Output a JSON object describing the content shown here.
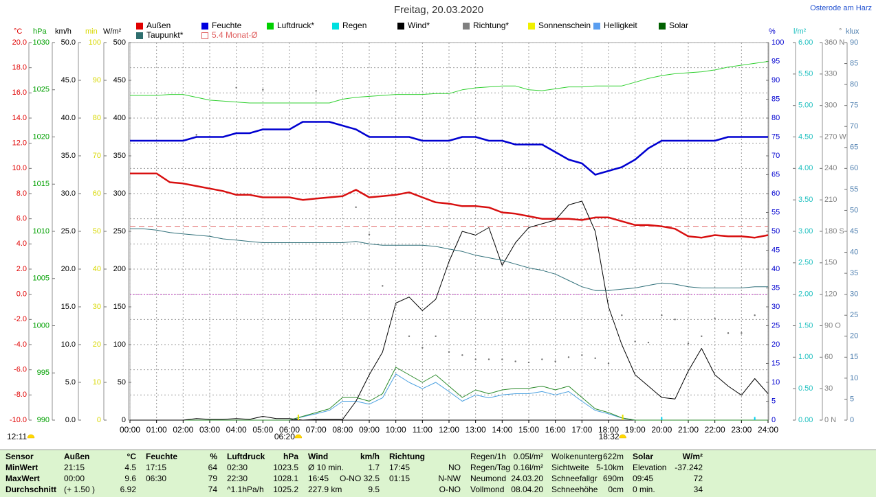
{
  "chart_data": {
    "type": "line",
    "title": "Freitag, 20.03.2020",
    "location": "Osterode am Harz",
    "xlim": [
      0,
      24
    ],
    "x": [
      0,
      0.5,
      1,
      1.5,
      2,
      2.5,
      3,
      3.5,
      4,
      4.5,
      5,
      5.5,
      6,
      6.5,
      7,
      7.5,
      8,
      8.5,
      9,
      9.5,
      10,
      10.5,
      11,
      11.5,
      12,
      12.5,
      13,
      13.5,
      14,
      14.5,
      15,
      15.5,
      16,
      16.5,
      17,
      17.5,
      18,
      18.5,
      19,
      19.5,
      20,
      20.5,
      21,
      21.5,
      22,
      22.5,
      23,
      23.5,
      24
    ],
    "xticks": [
      {
        "value": 0,
        "label": "00:00"
      },
      {
        "value": 1,
        "label": "01:00"
      },
      {
        "value": 2,
        "label": "02:00"
      },
      {
        "value": 3,
        "label": "03:00"
      },
      {
        "value": 4,
        "label": "04:00"
      },
      {
        "value": 5,
        "label": "05:00"
      },
      {
        "value": 6,
        "label": "06:00"
      },
      {
        "value": 7,
        "label": "07:00"
      },
      {
        "value": 8,
        "label": "08:00"
      },
      {
        "value": 9,
        "label": "09:00"
      },
      {
        "value": 10,
        "label": "10:00"
      },
      {
        "value": 11,
        "label": "11:00"
      },
      {
        "value": 12,
        "label": "12:00"
      },
      {
        "value": 13,
        "label": "13:00"
      },
      {
        "value": 14,
        "label": "14:00"
      },
      {
        "value": 15,
        "label": "15:00"
      },
      {
        "value": 16,
        "label": "16:00"
      },
      {
        "value": 17,
        "label": "17:00"
      },
      {
        "value": 18,
        "label": "18:00"
      },
      {
        "value": 19,
        "label": "19:00"
      },
      {
        "value": 20,
        "label": "20:00"
      },
      {
        "value": 21,
        "label": "21:00"
      },
      {
        "value": 22,
        "label": "22:00"
      },
      {
        "value": 23,
        "label": "23:00"
      },
      {
        "value": 24,
        "label": "24:00"
      }
    ],
    "grid": true,
    "axes": [
      {
        "unit": "°C",
        "side": "left",
        "color": "#e00000",
        "grid": true,
        "lim": [
          -10,
          20
        ],
        "ticks": [
          {
            "value": -10,
            "label": "-10.0"
          },
          {
            "value": -8,
            "label": "-8.0"
          },
          {
            "value": -6,
            "label": "-6.0"
          },
          {
            "value": -4,
            "label": "-4.0"
          },
          {
            "value": -2,
            "label": "-2.0"
          },
          {
            "value": 0,
            "label": "0.0"
          },
          {
            "value": 2,
            "label": "2.0"
          },
          {
            "value": 4,
            "label": "4.0"
          },
          {
            "value": 6,
            "label": "6.0"
          },
          {
            "value": 8,
            "label": "8.0"
          },
          {
            "value": 10,
            "label": "10.0"
          },
          {
            "value": 12,
            "label": "12.0"
          },
          {
            "value": 14,
            "label": "14.0"
          },
          {
            "value": 16,
            "label": "16.0"
          },
          {
            "value": 18,
            "label": "18.0"
          },
          {
            "value": 20,
            "label": "20.0"
          }
        ]
      },
      {
        "unit": "hPa",
        "side": "left",
        "color": "#00a000",
        "lim": [
          990,
          1030
        ],
        "ticks": [
          990,
          995,
          1000,
          1005,
          1010,
          1015,
          1020,
          1025,
          1030
        ]
      },
      {
        "unit": "km/h",
        "side": "left",
        "color": "#000000",
        "lim": [
          0,
          50
        ],
        "ticks": [
          {
            "value": 0,
            "label": "0.0"
          },
          {
            "value": 5,
            "label": "5.0"
          },
          {
            "value": 10,
            "label": "10.0"
          },
          {
            "value": 15,
            "label": "15.0"
          },
          {
            "value": 20,
            "label": "20.0"
          },
          {
            "value": 25,
            "label": "25.0"
          },
          {
            "value": 30,
            "label": "30.0"
          },
          {
            "value": 35,
            "label": "35.0"
          },
          {
            "value": 40,
            "label": "40.0"
          },
          {
            "value": 45,
            "label": "45.0"
          },
          {
            "value": 50,
            "label": "50.0"
          }
        ]
      },
      {
        "unit": "min",
        "side": "left",
        "color": "#d8d800",
        "lim": [
          0,
          100
        ],
        "ticks": [
          0,
          10,
          20,
          30,
          40,
          50,
          60,
          70,
          80,
          90,
          100
        ]
      },
      {
        "unit": "W/m²",
        "side": "left",
        "color": "#000000",
        "lim": [
          0,
          500
        ],
        "ticks": [
          0,
          50,
          100,
          150,
          200,
          250,
          300,
          350,
          400,
          450,
          500
        ]
      },
      {
        "unit": "%",
        "side": "right",
        "color": "#0000d0",
        "lim": [
          0,
          100
        ],
        "ticks": [
          0,
          5,
          10,
          15,
          20,
          25,
          30,
          35,
          40,
          45,
          50,
          55,
          60,
          65,
          70,
          75,
          80,
          85,
          90,
          95,
          100
        ]
      },
      {
        "unit": "l/m²",
        "side": "right",
        "color": "#20c0c0",
        "lim": [
          0,
          6
        ],
        "ticks": [
          {
            "value": 0,
            "label": "0.00"
          },
          {
            "value": 0.5,
            "label": "0.50"
          },
          {
            "value": 1,
            "label": "1.00"
          },
          {
            "value": 1.5,
            "label": "1.50"
          },
          {
            "value": 2,
            "label": "2.00"
          },
          {
            "value": 2.5,
            "label": "2.50"
          },
          {
            "value": 3,
            "label": "3.00"
          },
          {
            "value": 3.5,
            "label": "3.50"
          },
          {
            "value": 4,
            "label": "4.00"
          },
          {
            "value": 4.5,
            "label": "4.50"
          },
          {
            "value": 5,
            "label": "5.00"
          },
          {
            "value": 5.5,
            "label": "5.50"
          },
          {
            "value": 6,
            "label": "6.00"
          }
        ]
      },
      {
        "unit": "°",
        "side": "right",
        "color": "#808080",
        "lim": [
          0,
          360
        ],
        "ticks": [
          {
            "value": 0,
            "label": "0 N"
          },
          30,
          60,
          {
            "value": 90,
            "label": "90 O"
          },
          120,
          150,
          {
            "value": 180,
            "label": "180 S"
          },
          210,
          240,
          {
            "value": 270,
            "label": "270 W"
          },
          300,
          330,
          {
            "value": 360,
            "label": "360 N"
          }
        ]
      },
      {
        "unit": "klux",
        "side": "right",
        "color": "#5080b0",
        "lim": [
          0,
          90
        ],
        "ticks": [
          0,
          5,
          10,
          15,
          20,
          25,
          30,
          35,
          40,
          45,
          50,
          55,
          60,
          65,
          70,
          75,
          80,
          85,
          90
        ]
      }
    ],
    "series": [
      {
        "name": "Außen",
        "color": "#e00000",
        "line_color": "#d81010",
        "style": "line",
        "width": 2.5,
        "axis": "°C",
        "values": [
          9.6,
          9.6,
          9.6,
          8.9,
          8.8,
          8.6,
          8.4,
          8.2,
          7.9,
          7.9,
          7.7,
          7.7,
          7.7,
          7.5,
          7.6,
          7.7,
          7.8,
          8.3,
          7.7,
          7.8,
          7.9,
          8.1,
          7.7,
          7.3,
          7.2,
          7.0,
          7.0,
          6.9,
          6.5,
          6.4,
          6.2,
          6.0,
          6.0,
          6.0,
          5.9,
          6.1,
          6.1,
          5.8,
          5.5,
          5.5,
          5.4,
          5.2,
          4.6,
          4.5,
          4.7,
          4.6,
          4.6,
          4.5,
          4.7
        ]
      },
      {
        "name": "Feuchte",
        "color": "#0000e0",
        "line_color": "#0000d0",
        "style": "line",
        "width": 2.5,
        "axis": "%",
        "values": [
          74,
          74,
          74,
          74,
          74,
          75,
          75,
          75,
          76,
          76,
          77,
          77,
          77,
          79,
          79,
          79,
          78,
          77,
          75,
          75,
          75,
          75,
          74,
          74,
          74,
          75,
          75,
          74,
          74,
          73,
          73,
          73,
          71,
          69,
          68,
          65,
          66,
          67,
          69,
          72,
          74,
          74,
          74,
          74,
          74,
          75,
          75,
          75,
          75
        ]
      },
      {
        "name": "Luftdruck*",
        "color": "#00d000",
        "line_color": "#30d030",
        "style": "line",
        "width": 1,
        "axis": "hPa",
        "values": [
          1024.4,
          1024.4,
          1024.4,
          1024.5,
          1024.5,
          1024.2,
          1023.9,
          1023.8,
          1023.7,
          1023.6,
          1023.6,
          1023.6,
          1023.6,
          1023.6,
          1023.6,
          1023.6,
          1024.0,
          1024.2,
          1024.3,
          1024.4,
          1024.5,
          1024.5,
          1024.5,
          1024.6,
          1024.6,
          1025.0,
          1025.2,
          1025.3,
          1025.4,
          1025.4,
          1025.0,
          1024.9,
          1025.1,
          1025.3,
          1025.3,
          1025.4,
          1025.4,
          1025.4,
          1025.8,
          1026.2,
          1026.5,
          1026.7,
          1026.8,
          1026.9,
          1027.1,
          1027.4,
          1027.6,
          1027.8,
          1028.0
        ]
      },
      {
        "name": "Regen",
        "color": "#00e0e0",
        "line_color": "#00d0f0",
        "style": "bars",
        "width": 2,
        "axis": "l/m²",
        "values": [
          null,
          null,
          null,
          null,
          null,
          null,
          null,
          null,
          null,
          null,
          null,
          null,
          null,
          null,
          null,
          null,
          null,
          null,
          null,
          null,
          null,
          null,
          null,
          null,
          null,
          null,
          null,
          null,
          null,
          null,
          null,
          null,
          null,
          null,
          null,
          null,
          null,
          null,
          null,
          null,
          0.05,
          null,
          null,
          null,
          null,
          null,
          null,
          0.05,
          null
        ]
      },
      {
        "name": "Wind*",
        "color": "#000000",
        "line_color": "#000000",
        "style": "line",
        "width": 1,
        "axis": "km/h",
        "values": [
          0,
          0,
          0,
          0,
          0,
          0.2,
          0.1,
          0.1,
          0.2,
          0.1,
          0.5,
          0.2,
          0.2,
          0,
          0.1,
          0.1,
          0.1,
          2.5,
          6.0,
          9.0,
          15.5,
          16.3,
          14.5,
          16.0,
          21.0,
          25.0,
          24.5,
          25.5,
          20.5,
          23.5,
          25.5,
          26.0,
          26.5,
          28.5,
          29.0,
          25.0,
          15.0,
          10.0,
          6.0,
          4.5,
          3.0,
          2.8,
          6.5,
          9.5,
          6.0,
          4.5,
          3.3,
          5.5,
          3.5
        ]
      },
      {
        "name": "Richtung*",
        "color": "#808080",
        "line_color": "#707070",
        "style": "dots",
        "width": 1,
        "axis": "°",
        "values": [
          null,
          null,
          null,
          null,
          null,
          272,
          null,
          null,
          317,
          null,
          315,
          null,
          null,
          null,
          314,
          null,
          null,
          203,
          177,
          128,
          110,
          80,
          69,
          80,
          65,
          62,
          58,
          58,
          58,
          56,
          55,
          58,
          56,
          60,
          62,
          59,
          54,
          100,
          75,
          74,
          100,
          96,
          73,
          80,
          97,
          83,
          83,
          100,
          null
        ]
      },
      {
        "name": "Sonnenschein",
        "color": "#f0f000",
        "line_color": "#f0f000",
        "style": "line",
        "width": 1,
        "axis": "min",
        "values": [
          null,
          null,
          null,
          null,
          null,
          null,
          null,
          null,
          null,
          null,
          null,
          null,
          null,
          null,
          null,
          null,
          null,
          null,
          null,
          null,
          null,
          null,
          null,
          null,
          null,
          null,
          null,
          null,
          null,
          null,
          null,
          null,
          null,
          null,
          null,
          null,
          null,
          null,
          null,
          null,
          null,
          null,
          null,
          null,
          null,
          null,
          null,
          null,
          null
        ]
      },
      {
        "name": "Helligkeit",
        "color": "#5a9ef0",
        "line_color": "#4aa0e0",
        "style": "line",
        "width": 1,
        "axis": "klux",
        "values": [
          0,
          0,
          0,
          0,
          0,
          0,
          0,
          0,
          0,
          0,
          0,
          0,
          0,
          0.8,
          1.5,
          2.3,
          4.5,
          4.5,
          3.8,
          5.3,
          11,
          9,
          7.5,
          9,
          6.8,
          4.5,
          6,
          5.3,
          6,
          6.3,
          6.3,
          6.8,
          6,
          6.8,
          4.5,
          2.3,
          1.5,
          0.5,
          0,
          0,
          0,
          0,
          0,
          0,
          0,
          0,
          0,
          0,
          0
        ]
      },
      {
        "name": "Solar",
        "color": "#006000",
        "line_color": "#2a8a2a",
        "style": "line",
        "width": 1,
        "axis": "W/m²",
        "values": [
          0,
          0,
          0,
          0,
          0,
          0,
          0,
          0,
          0,
          0,
          0,
          0,
          0,
          5,
          10,
          15,
          30,
          30,
          25,
          35,
          70,
          60,
          50,
          60,
          45,
          30,
          40,
          35,
          40,
          42,
          42,
          45,
          40,
          45,
          30,
          15,
          10,
          3,
          0,
          0,
          0,
          0,
          0,
          0,
          0,
          0,
          0,
          0,
          0
        ]
      },
      {
        "name": "Taupunkt*",
        "color": "#2e6e6e",
        "line_color": "#2e6e78",
        "style": "line",
        "width": 1,
        "axis": "°C",
        "values": [
          5.2,
          5.2,
          5.1,
          4.9,
          4.8,
          4.7,
          4.6,
          4.4,
          4.3,
          4.2,
          4.1,
          4.1,
          4.1,
          4.1,
          4.1,
          4.1,
          4.1,
          4.2,
          4.0,
          3.9,
          3.9,
          3.9,
          3.9,
          3.8,
          3.6,
          3.4,
          3.1,
          2.9,
          2.7,
          2.4,
          2.1,
          1.9,
          1.6,
          1.1,
          0.6,
          0.3,
          0.3,
          0.4,
          0.5,
          0.7,
          0.9,
          0.8,
          0.6,
          0.5,
          0.5,
          0.5,
          0.5,
          0.6,
          0.6
        ]
      }
    ],
    "reference_lines": [
      {
        "name": "5.4 Monat-Ø",
        "value": 5.4,
        "axis": "°C",
        "color": "#e06060",
        "dash": "8,5"
      },
      {
        "value": 0,
        "axis": "°C",
        "color": "#c030c0",
        "dash": "2,2"
      }
    ],
    "annotations": {
      "sunrise": "06:20",
      "sunset": "18:32",
      "time": "12:11"
    }
  },
  "table": {
    "rows": [
      [
        "Sensor",
        "Außen",
        "°C",
        "Feuchte",
        "%",
        "Luftdruck",
        "hPa",
        "Wind",
        "km/h",
        "Richtung",
        null,
        "Regen/1h",
        "0.05l/m²",
        "Wolkenunterg",
        "622m",
        "Solar",
        "W/m²"
      ],
      [
        "MinWert",
        "21:15",
        "4.5",
        "17:15",
        "64",
        "02:30",
        "1023.5",
        "Ø 10 min.",
        "1.7",
        "17:45",
        "NO",
        "Regen/Tag",
        "0.16l/m²",
        "Sichtweite",
        "5-10km",
        "Elevation",
        "-37.242"
      ],
      [
        "MaxWert",
        "00:00",
        "9.6",
        "06:30",
        "79",
        "22:30",
        "1028.1",
        "16:45",
        "O-NO 32.5",
        "01:15",
        "N-NW",
        "Neumond",
        "24.03.20",
        "Schneefallgr",
        "690m",
        "09:45",
        "72"
      ],
      [
        "Durchschnitt",
        "(+ 1.50 )",
        "6.92",
        null,
        "74",
        "^1.1hPa/h",
        "1025.2",
        "227.9 km",
        "9.5",
        null,
        "O-NO",
        "Vollmond",
        "08.04.20",
        "Schneehöhe",
        "0cm",
        "0 min.",
        "34"
      ]
    ]
  }
}
